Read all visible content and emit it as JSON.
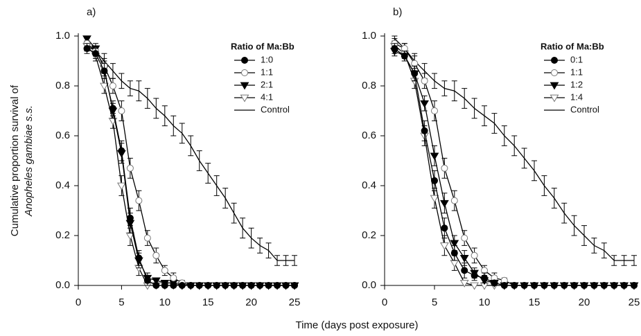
{
  "chart_data": [
    {
      "type": "line",
      "panel_label": "a)",
      "ylabel": [
        "Cumulative proportion survival of",
        "Anopheles gambiae s.s."
      ],
      "xlabel": "Time (days post exposure)",
      "legend_title": "Ratio of Ma:Bb",
      "x": [
        1,
        2,
        3,
        4,
        5,
        6,
        7,
        8,
        9,
        10,
        11,
        12,
        13,
        14,
        15,
        16,
        17,
        18,
        19,
        20,
        21,
        22,
        23,
        24,
        25
      ],
      "xlim": [
        0,
        25
      ],
      "xticks": [
        0,
        5,
        10,
        15,
        20,
        25
      ],
      "ylim": [
        0,
        1
      ],
      "yticks": [
        {
          "value": 0,
          "label": "0.0"
        },
        0.2,
        0.4,
        0.6,
        0.8,
        {
          "value": 1,
          "label": "1.0"
        }
      ],
      "series": [
        {
          "name": "1:0",
          "color": "#000000",
          "marker": "circle-filled",
          "values": [
            0.95,
            0.93,
            0.86,
            0.71,
            0.54,
            0.27,
            0.11,
            0.02,
            0,
            0,
            0,
            0,
            0,
            0,
            0,
            0,
            0,
            0,
            0,
            0,
            0,
            0,
            0,
            0,
            0
          ],
          "errors": [
            0.02,
            0.02,
            0.03,
            0.03,
            0.04,
            0.04,
            0.03,
            0.02,
            0,
            0,
            0,
            0,
            0,
            0,
            0,
            0,
            0,
            0,
            0,
            0,
            0,
            0,
            0,
            0,
            0
          ]
        },
        {
          "name": "1:1",
          "color": "#000000",
          "marker": "circle-open",
          "values": [
            0.97,
            0.94,
            0.88,
            0.8,
            0.7,
            0.47,
            0.34,
            0.19,
            0.12,
            0.06,
            0.03,
            0.01,
            0,
            0,
            0,
            0,
            0,
            0,
            0,
            0,
            0,
            0,
            0,
            0,
            0
          ],
          "errors": [
            0.02,
            0.02,
            0.03,
            0.03,
            0.04,
            0.04,
            0.04,
            0.03,
            0.03,
            0.02,
            0.02,
            0.01,
            0,
            0,
            0,
            0,
            0,
            0,
            0,
            0,
            0,
            0,
            0,
            0,
            0
          ]
        },
        {
          "name": "2:1",
          "color": "#000000",
          "marker": "triangle-filled",
          "values": [
            0.99,
            0.95,
            0.87,
            0.7,
            0.53,
            0.25,
            0.1,
            0.03,
            0.02,
            0.01,
            0.01,
            0,
            0,
            0,
            0,
            0,
            0,
            0,
            0,
            0,
            0,
            0,
            0,
            0,
            0
          ],
          "errors": [
            0.01,
            0.02,
            0.03,
            0.03,
            0.04,
            0.04,
            0.03,
            0.02,
            0.01,
            0.01,
            0.01,
            0,
            0,
            0,
            0,
            0,
            0,
            0,
            0,
            0,
            0,
            0,
            0,
            0,
            0
          ]
        },
        {
          "name": "4:1",
          "color": "#000000",
          "marker": "triangle-open",
          "values": [
            0.96,
            0.92,
            0.8,
            0.66,
            0.4,
            0.2,
            0.07,
            0,
            0,
            0,
            0,
            0,
            0,
            0,
            0,
            0,
            0,
            0,
            0,
            0,
            0,
            0,
            0,
            0,
            0
          ],
          "errors": [
            0.02,
            0.02,
            0.03,
            0.03,
            0.04,
            0.04,
            0.03,
            0,
            0,
            0,
            0,
            0,
            0,
            0,
            0,
            0,
            0,
            0,
            0,
            0,
            0,
            0,
            0,
            0,
            0
          ]
        },
        {
          "name": "Control",
          "color": "#000000",
          "marker": "none",
          "values": [
            0.96,
            0.94,
            0.9,
            0.86,
            0.82,
            0.79,
            0.78,
            0.75,
            0.71,
            0.68,
            0.64,
            0.61,
            0.56,
            0.5,
            0.45,
            0.4,
            0.35,
            0.29,
            0.23,
            0.19,
            0.16,
            0.14,
            0.1,
            0.1,
            0.1
          ],
          "errors": [
            0.02,
            0.02,
            0.03,
            0.03,
            0.03,
            0.03,
            0.04,
            0.04,
            0.04,
            0.04,
            0.04,
            0.04,
            0.04,
            0.04,
            0.04,
            0.04,
            0.04,
            0.04,
            0.04,
            0.04,
            0.03,
            0.03,
            0.02,
            0.02,
            0.02
          ]
        }
      ]
    },
    {
      "type": "line",
      "panel_label": "b)",
      "legend_title": "Ratio of Ma:Bb",
      "x": [
        1,
        2,
        3,
        4,
        5,
        6,
        7,
        8,
        9,
        10,
        11,
        12,
        13,
        14,
        15,
        16,
        17,
        18,
        19,
        20,
        21,
        22,
        23,
        24,
        25
      ],
      "xlim": [
        0,
        25
      ],
      "xticks": [
        0,
        5,
        10,
        15,
        20,
        25
      ],
      "ylim": [
        0,
        1
      ],
      "yticks": [
        {
          "value": 0,
          "label": "0.0"
        },
        0.2,
        0.4,
        0.6,
        0.8,
        {
          "value": 1,
          "label": "1.0"
        }
      ],
      "series": [
        {
          "name": "0:1",
          "color": "#000000",
          "marker": "circle-filled",
          "values": [
            0.95,
            0.92,
            0.85,
            0.62,
            0.42,
            0.23,
            0.13,
            0.06,
            0.04,
            0.03,
            0.01,
            0,
            0,
            0,
            0,
            0,
            0,
            0,
            0,
            0,
            0,
            0,
            0,
            0,
            0
          ],
          "errors": [
            0.02,
            0.02,
            0.03,
            0.04,
            0.04,
            0.04,
            0.03,
            0.03,
            0.02,
            0.02,
            0.01,
            0,
            0,
            0,
            0,
            0,
            0,
            0,
            0,
            0,
            0,
            0,
            0,
            0,
            0
          ]
        },
        {
          "name": "1:1",
          "color": "#000000",
          "marker": "circle-open",
          "values": [
            0.97,
            0.95,
            0.89,
            0.82,
            0.7,
            0.47,
            0.34,
            0.19,
            0.12,
            0.06,
            0.03,
            0.02,
            0,
            0,
            0,
            0,
            0,
            0,
            0,
            0,
            0,
            0,
            0,
            0,
            0
          ],
          "errors": [
            0.02,
            0.02,
            0.03,
            0.03,
            0.04,
            0.04,
            0.04,
            0.03,
            0.03,
            0.02,
            0.02,
            0.01,
            0,
            0,
            0,
            0,
            0,
            0,
            0,
            0,
            0,
            0,
            0,
            0,
            0
          ]
        },
        {
          "name": "1:2",
          "color": "#000000",
          "marker": "triangle-filled",
          "values": [
            0.94,
            0.92,
            0.85,
            0.73,
            0.52,
            0.33,
            0.17,
            0.11,
            0.05,
            0.02,
            0.01,
            0,
            0,
            0,
            0,
            0,
            0,
            0,
            0,
            0,
            0,
            0,
            0,
            0,
            0
          ],
          "errors": [
            0.02,
            0.02,
            0.03,
            0.03,
            0.04,
            0.04,
            0.03,
            0.03,
            0.02,
            0.01,
            0.01,
            0,
            0,
            0,
            0,
            0,
            0,
            0,
            0,
            0,
            0,
            0,
            0,
            0,
            0
          ]
        },
        {
          "name": "1:4",
          "color": "#000000",
          "marker": "triangle-open",
          "values": [
            0.96,
            0.93,
            0.82,
            0.6,
            0.35,
            0.16,
            0.09,
            0.01,
            0,
            0,
            0,
            0,
            0,
            0,
            0,
            0,
            0,
            0,
            0,
            0,
            0,
            0,
            0,
            0,
            0
          ],
          "errors": [
            0.02,
            0.02,
            0.03,
            0.04,
            0.04,
            0.04,
            0.03,
            0.01,
            0,
            0,
            0,
            0,
            0,
            0,
            0,
            0,
            0,
            0,
            0,
            0,
            0,
            0,
            0,
            0,
            0
          ]
        },
        {
          "name": "Control",
          "color": "#000000",
          "marker": "none",
          "values": [
            0.99,
            0.95,
            0.9,
            0.86,
            0.82,
            0.79,
            0.78,
            0.75,
            0.71,
            0.68,
            0.65,
            0.6,
            0.56,
            0.51,
            0.46,
            0.4,
            0.35,
            0.29,
            0.24,
            0.2,
            0.16,
            0.14,
            0.1,
            0.1,
            0.1
          ],
          "errors": [
            0.01,
            0.02,
            0.03,
            0.03,
            0.03,
            0.03,
            0.04,
            0.04,
            0.04,
            0.04,
            0.04,
            0.04,
            0.04,
            0.04,
            0.04,
            0.04,
            0.04,
            0.04,
            0.04,
            0.04,
            0.03,
            0.03,
            0.02,
            0.02,
            0.02
          ]
        }
      ]
    }
  ]
}
